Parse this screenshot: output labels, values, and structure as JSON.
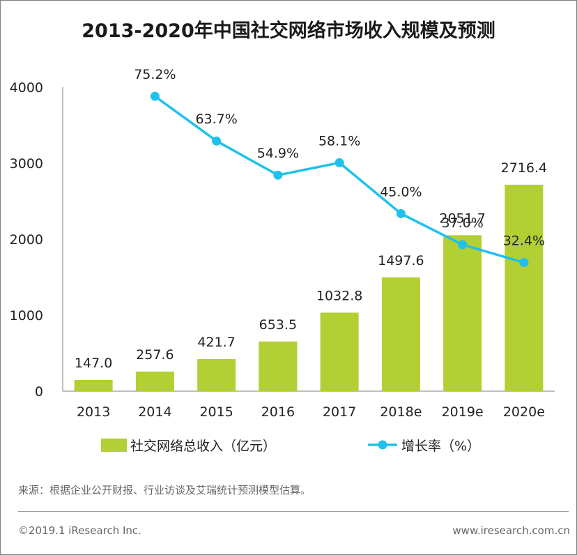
{
  "title": "2013-2020年中国社交网络市场收入规模及预测",
  "source": "来源：根据企业公开财报、行业访谈及艾瑞统计预测模型估算。",
  "copyright": "©2019.1 iResearch Inc.",
  "website": "www.iresearch.com.cn",
  "colors": {
    "bar": "#b2cf34",
    "line": "#1fc1ec",
    "axis": "#7f7f7f"
  },
  "chart_data": {
    "type": "bar",
    "categories": [
      "2013",
      "2014",
      "2015",
      "2016",
      "2017",
      "2018e",
      "2019e",
      "2020e"
    ],
    "ylim": [
      0,
      4000
    ],
    "yticks": [
      "0",
      "1000",
      "2000",
      "3000",
      "4000"
    ],
    "grid": false,
    "legend_position": "bottom",
    "series": [
      {
        "name": "社交网络总收入（亿元）",
        "type": "bar",
        "values": [
          147.0,
          257.6,
          421.7,
          653.5,
          1032.8,
          1497.6,
          2051.7,
          2716.4
        ],
        "labels": [
          "147.0",
          "257.6",
          "421.7",
          "653.5",
          "1032.8",
          "1497.6",
          "2051.7",
          "2716.4"
        ]
      },
      {
        "name": "增长率（%）",
        "type": "line",
        "values": [
          null,
          75.2,
          63.7,
          54.9,
          58.1,
          45.0,
          37.0,
          32.4
        ],
        "labels": [
          "",
          "75.2%",
          "63.7%",
          "54.9%",
          "58.1%",
          "45.0%",
          "37.0%",
          "32.4%"
        ]
      }
    ]
  }
}
